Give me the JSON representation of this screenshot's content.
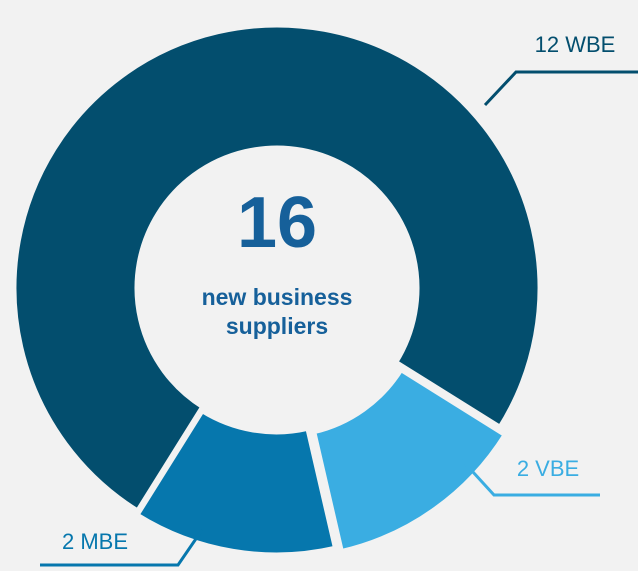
{
  "chart_data": {
    "type": "pie",
    "donut": true,
    "values": [
      12,
      2,
      2
    ],
    "value_labels": [
      "12 WBE",
      "2 VBE",
      "2 MBE"
    ],
    "colors": [
      "#034e6e",
      "#3aade2",
      "#0677ad"
    ],
    "center_value": 16,
    "center_label": [
      "new business",
      "suppliers"
    ]
  }
}
